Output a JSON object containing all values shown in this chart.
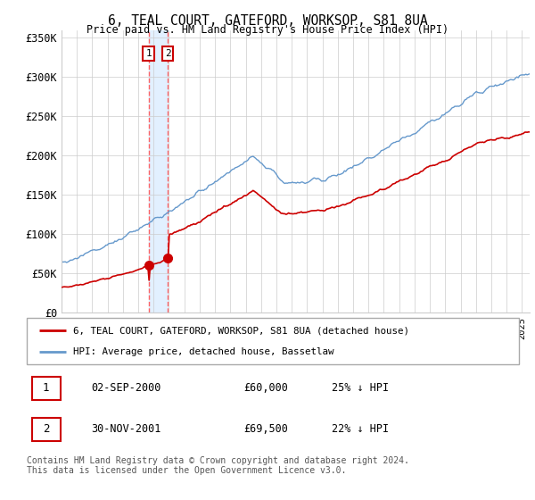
{
  "title": "6, TEAL COURT, GATEFORD, WORKSOP, S81 8UA",
  "subtitle": "Price paid vs. HM Land Registry's House Price Index (HPI)",
  "legend_entry1": "6, TEAL COURT, GATEFORD, WORKSOP, S81 8UA (detached house)",
  "legend_entry2": "HPI: Average price, detached house, Bassetlaw",
  "footer": "Contains HM Land Registry data © Crown copyright and database right 2024.\nThis data is licensed under the Open Government Licence v3.0.",
  "transaction1_date": "02-SEP-2000",
  "transaction1_price": "£60,000",
  "transaction1_hpi": "25% ↓ HPI",
  "transaction2_date": "30-NOV-2001",
  "transaction2_price": "£69,500",
  "transaction2_hpi": "22% ↓ HPI",
  "red_color": "#cc0000",
  "blue_color": "#6699cc",
  "shaded_color": "#ddeeff",
  "dashed_red": "#ff5555",
  "ylim": [
    0,
    360000
  ],
  "yticks": [
    0,
    50000,
    100000,
    150000,
    200000,
    250000,
    300000,
    350000
  ],
  "ytick_labels": [
    "£0",
    "£50K",
    "£100K",
    "£150K",
    "£200K",
    "£250K",
    "£300K",
    "£350K"
  ],
  "background_color": "#ffffff",
  "grid_color": "#cccccc",
  "t1_year": 2000.67,
  "t2_year": 2001.92,
  "t1_price": 60000,
  "t2_price": 69500
}
